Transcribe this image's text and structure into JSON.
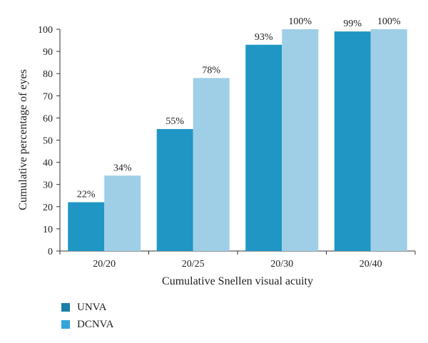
{
  "chart_data": {
    "type": "bar",
    "title": "",
    "xlabel": "Cumulative Snellen visual acuity",
    "ylabel": "Cumulative percentage of eyes",
    "categories": [
      "20/20",
      "20/25",
      "20/30",
      "20/40"
    ],
    "series": [
      {
        "name": "UNVA",
        "values": [
          22,
          55,
          93,
          99
        ],
        "labels": [
          "22%",
          "55%",
          "93%",
          "99%"
        ],
        "color": "#2096c4"
      },
      {
        "name": "DCNVA",
        "values": [
          34,
          78,
          100,
          100
        ],
        "labels": [
          "34%",
          "78%",
          "100%",
          "100%"
        ],
        "color": "#9fcfe6"
      }
    ],
    "ylim": [
      0,
      100
    ],
    "yticks": [
      0,
      10,
      20,
      30,
      40,
      50,
      60,
      70,
      80,
      90,
      100
    ],
    "grid": false,
    "legend_position": "bottom-left"
  },
  "legend_colors": {
    "UNVA": "#1a7fa8",
    "DCNVA": "#33a6d9"
  }
}
